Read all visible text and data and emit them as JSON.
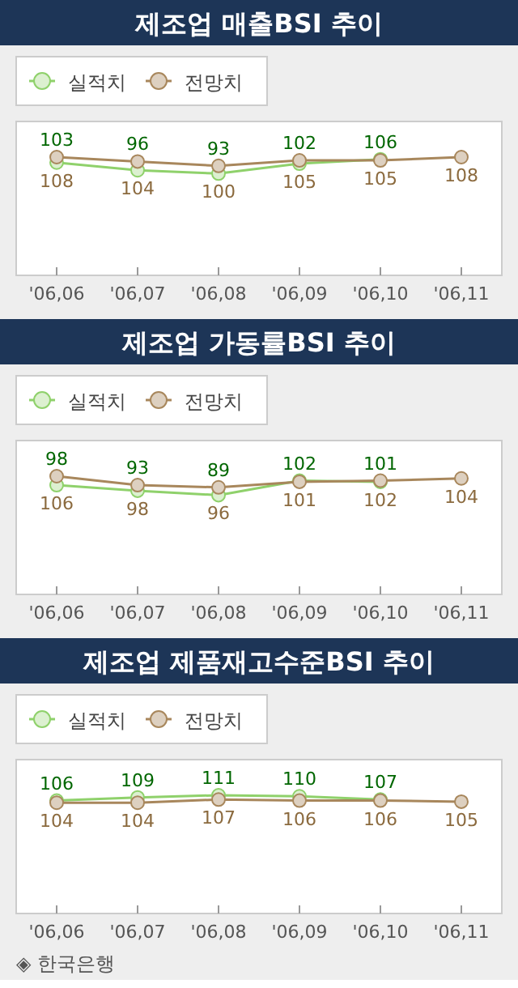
{
  "chart_data": [
    {
      "type": "line",
      "title": "제조업 매출BSI 추이",
      "categories": [
        "'06,06",
        "'06,07",
        "'06,08",
        "'06,09",
        "'06,10",
        "'06,11"
      ],
      "legend": "top left",
      "marker": "circle",
      "data_labels": true,
      "grid": false,
      "series": [
        {
          "name": "실적치",
          "color": "#8fd16b",
          "values": [
            103,
            96,
            93,
            102,
            106,
            null
          ]
        },
        {
          "name": "전망치",
          "color": "#a8875c",
          "values": [
            108,
            104,
            100,
            105,
            105,
            108
          ]
        }
      ]
    },
    {
      "type": "line",
      "title": "제조업 가동률BSI 추이",
      "categories": [
        "'06,06",
        "'06,07",
        "'06,08",
        "'06,09",
        "'06,10",
        "'06,11"
      ],
      "legend": "top left",
      "marker": "circle",
      "data_labels": true,
      "grid": false,
      "series": [
        {
          "name": "실적치",
          "color": "#8fd16b",
          "values": [
            98,
            93,
            89,
            102,
            101,
            null
          ]
        },
        {
          "name": "전망치",
          "color": "#a8875c",
          "values": [
            106,
            98,
            96,
            101,
            102,
            104
          ]
        }
      ]
    },
    {
      "type": "line",
      "title": "제조업 제품재고수준BSI 추이",
      "categories": [
        "'06,06",
        "'06,07",
        "'06,08",
        "'06,09",
        "'06,10",
        "'06,11"
      ],
      "legend": "top left",
      "marker": "circle",
      "data_labels": true,
      "grid": false,
      "annotations": [
        "◈ 한국은행"
      ],
      "series": [
        {
          "name": "실적치",
          "color": "#8fd16b",
          "values": [
            106,
            109,
            111,
            110,
            107,
            null
          ]
        },
        {
          "name": "전망치",
          "color": "#a8875c",
          "values": [
            104,
            104,
            107,
            106,
            106,
            105
          ]
        }
      ]
    }
  ]
}
